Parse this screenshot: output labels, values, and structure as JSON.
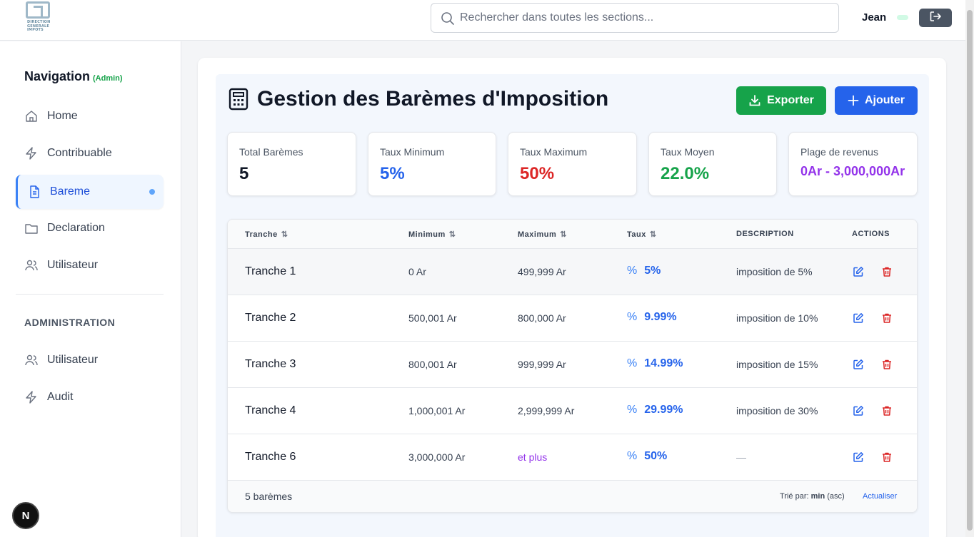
{
  "header": {
    "logo_text": [
      "DIRECTION",
      "GENERALE",
      "IMPOTS"
    ],
    "search_placeholder": "Rechercher dans toutes les sections...",
    "user_name": "Jean"
  },
  "sidebar": {
    "title": "Navigation",
    "role_badge": "(Admin)",
    "items": [
      {
        "label": "Home",
        "icon": "home-icon"
      },
      {
        "label": "Contribuable",
        "icon": "lightning-icon"
      },
      {
        "label": "Bareme",
        "icon": "document-icon",
        "active": true
      },
      {
        "label": "Declaration",
        "icon": "folder-icon"
      },
      {
        "label": "Utilisateur",
        "icon": "users-icon"
      }
    ],
    "admin_section_label": "ADMINISTRATION",
    "admin_items": [
      {
        "label": "Utilisateur",
        "icon": "users-icon"
      },
      {
        "label": "Audit",
        "icon": "lightning-icon"
      }
    ],
    "fab_label": "N"
  },
  "main": {
    "title": "Gestion des Barèmes d'Imposition",
    "export_label": "Exporter",
    "add_label": "Ajouter",
    "stats": [
      {
        "label": "Total Barèmes",
        "value": "5",
        "color": "#111827"
      },
      {
        "label": "Taux Minimum",
        "value": "5%",
        "color": "#2563eb"
      },
      {
        "label": "Taux Maximum",
        "value": "50%",
        "color": "#dc2626"
      },
      {
        "label": "Taux Moyen",
        "value": "22.0%",
        "color": "#16a34a"
      },
      {
        "label": "Plage de revenus",
        "value": "0Ar - 3,000,000Ar",
        "color": "#9333ea"
      }
    ],
    "table": {
      "headers": {
        "tranche": "Tranche",
        "minimum": "Minimum",
        "maximum": "Maximum",
        "taux": "Taux",
        "description": "DESCRIPTION",
        "actions": "ACTIONS"
      },
      "sort_glyph": "⇅",
      "rate_glyph": "%",
      "rows": [
        {
          "tranche": "Tranche 1",
          "minimum": "0 Ar",
          "maximum": "499,999 Ar",
          "taux": "5%",
          "description": "imposition de 5%"
        },
        {
          "tranche": "Tranche 2",
          "minimum": "500,001 Ar",
          "maximum": "800,000 Ar",
          "taux": "9.99%",
          "description": "imposition de 10%"
        },
        {
          "tranche": "Tranche 3",
          "minimum": "800,001 Ar",
          "maximum": "999,999 Ar",
          "taux": "14.99%",
          "description": "imposition de 15%"
        },
        {
          "tranche": "Tranche 4",
          "minimum": "1,000,001 Ar",
          "maximum": "2,999,999 Ar",
          "taux": "29.99%",
          "description": "imposition de 30%"
        },
        {
          "tranche": "Tranche 6",
          "minimum": "3,000,000 Ar",
          "maximum": "et plus",
          "taux": "50%",
          "description": "—"
        }
      ],
      "footer": {
        "count": "5 barèmes",
        "sorted_prefix": "Trié par:",
        "sorted_field": "min",
        "sorted_order": "(asc)",
        "refresh": "Actualiser"
      }
    }
  }
}
